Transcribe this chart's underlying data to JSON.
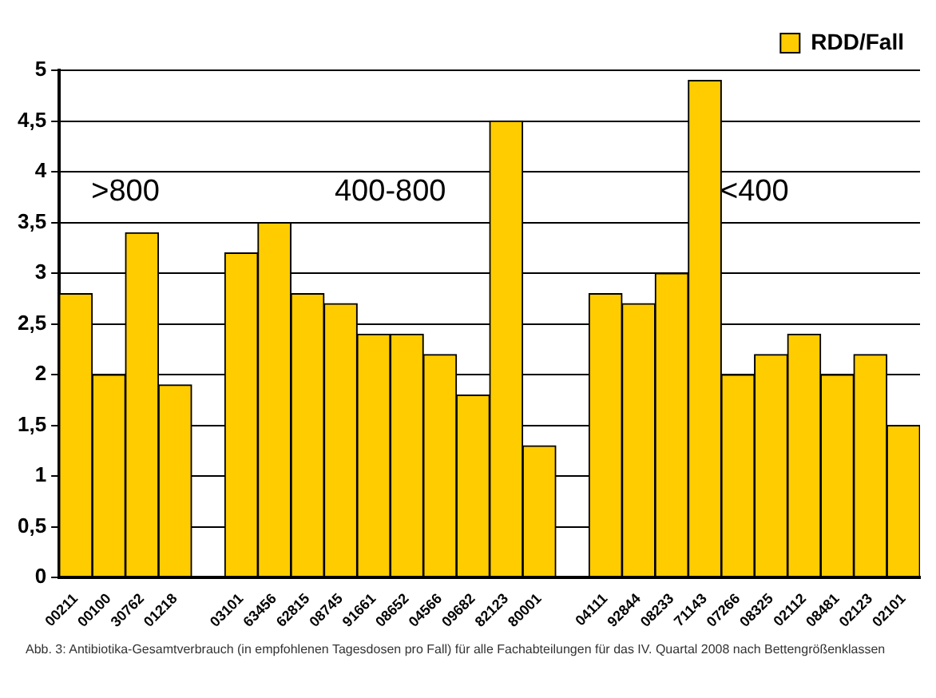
{
  "chart_data": {
    "type": "bar",
    "categories": [
      "00211",
      "00100",
      "30762",
      "01218",
      null,
      "03101",
      "63456",
      "62815",
      "08745",
      "91661",
      "08652",
      "04566",
      "09682",
      "82123",
      "80001",
      null,
      "04111",
      "92844",
      "08233",
      "71143",
      "07266",
      "08325",
      "02112",
      "08481",
      "02123",
      "02101"
    ],
    "series": [
      {
        "name": "RDD/Fall",
        "color": "#ffcc00",
        "values": [
          2.8,
          2.0,
          3.4,
          1.9,
          null,
          3.2,
          3.5,
          2.8,
          2.7,
          2.4,
          2.4,
          2.2,
          1.8,
          4.5,
          1.3,
          null,
          2.8,
          2.7,
          3.0,
          4.9,
          2.0,
          2.2,
          2.4,
          2.0,
          2.2,
          1.5
        ]
      }
    ],
    "ylim": [
      0,
      5
    ],
    "yticks": [
      0,
      {
        "value": 0.5,
        "label": "0,5"
      },
      1,
      {
        "value": 1.5,
        "label": "1,5"
      },
      2,
      {
        "value": 2.5,
        "label": "2,5"
      },
      3,
      {
        "value": 3.5,
        "label": "3,5"
      },
      4,
      {
        "value": 4.5,
        "label": "4,5"
      },
      5
    ],
    "grid": "y",
    "legend": "top right",
    "annotations": [
      ">800",
      "400-800",
      "<400",
      "Abb. 3: Antibiotika-Gesamtverbrauch (in empfohlenen Tagesdosen pro Fall) für alle Fachabteilungen für das IV. Quartal 2008 nach Bettengrößenklassen"
    ]
  }
}
